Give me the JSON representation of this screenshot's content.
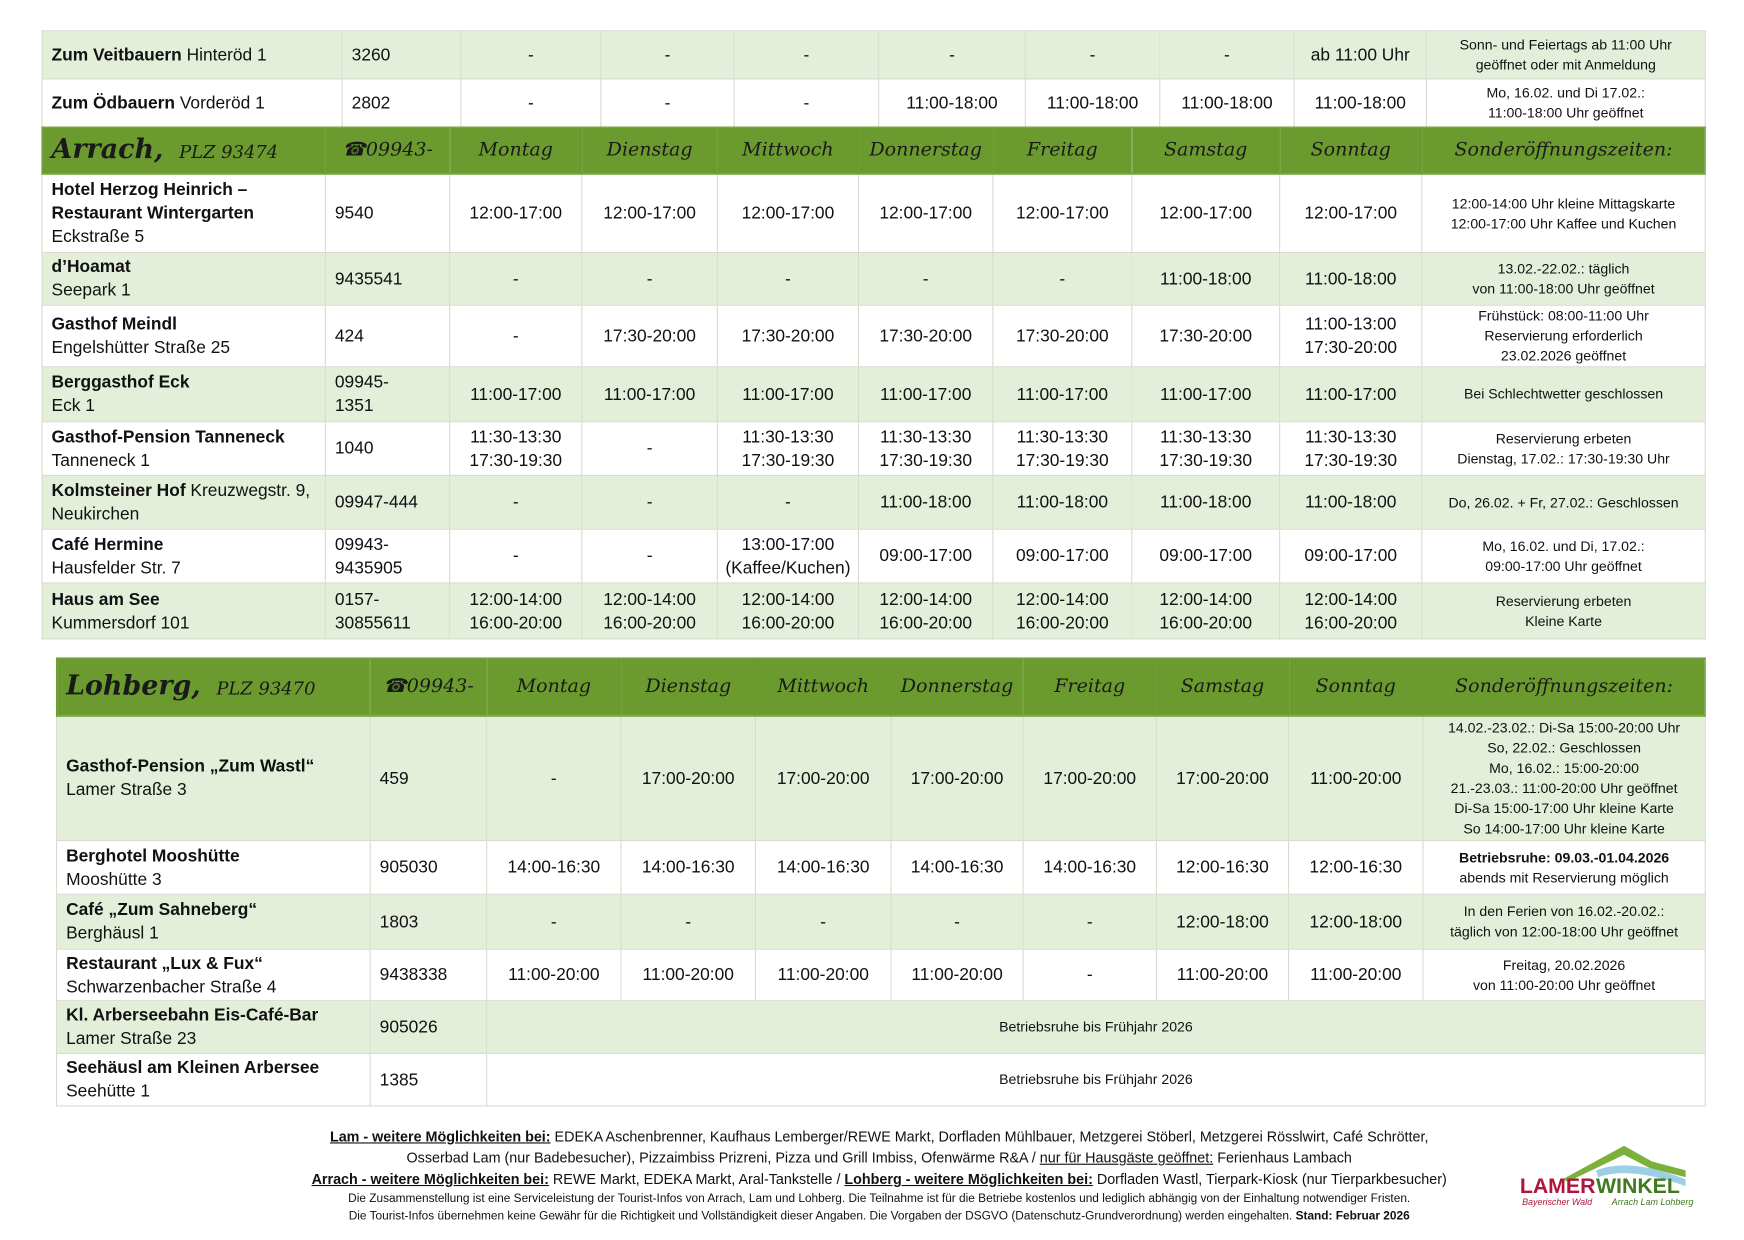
{
  "top_table": {
    "rows": [
      {
        "name": "Zum Veitbauern",
        "address": "Hinteröd 1",
        "phone": "3260",
        "days": [
          "-",
          "-",
          "-",
          "-",
          "-",
          "-",
          "ab 11:00 Uhr"
        ],
        "note": "Sonn- und Feiertags ab 11:00 Uhr\ngeöffnet oder mit Anmeldung"
      },
      {
        "name": "Zum Ödbauern",
        "address": "Vorderöd 1",
        "phone": "2802",
        "days": [
          "-",
          "-",
          "-",
          "11:00-18:00",
          "11:00-18:00",
          "11:00-18:00",
          "11:00-18:00"
        ],
        "note": "Mo, 16.02. und Di 17.02.:\n11:00-18:00 Uhr geöffnet"
      }
    ]
  },
  "arrach": {
    "header": {
      "place": "Arrach,",
      "plz": "PLZ 93474",
      "phone": "☎09943-",
      "days": [
        "Montag",
        "Dienstag",
        "Mittwoch",
        "Donnerstag",
        "Freitag",
        "Samstag",
        "Sonntag"
      ],
      "special": "Sonderöffnungszeiten:"
    },
    "rows": [
      {
        "name": "Hotel Herzog Heinrich –\nRestaurant Wintergarten",
        "address": "Eckstraße 5",
        "phone": "9540",
        "days": [
          "12:00-17:00",
          "12:00-17:00",
          "12:00-17:00",
          "12:00-17:00",
          "12:00-17:00",
          "12:00-17:00",
          "12:00-17:00"
        ],
        "note": "12:00-14:00 Uhr kleine Mittagskarte\n12:00-17:00 Uhr Kaffee und Kuchen"
      },
      {
        "name": "d’Hoamat",
        "address": "Seepark 1",
        "phone": "9435541",
        "days": [
          "-",
          "-",
          "-",
          "-",
          "-",
          "11:00-18:00",
          "11:00-18:00"
        ],
        "note": "13.02.-22.02.: täglich\nvon 11:00-18:00 Uhr geöffnet"
      },
      {
        "name": "Gasthof Meindl",
        "address": "Engelshütter Straße 25",
        "phone": "424",
        "days": [
          "-",
          "17:30-20:00",
          "17:30-20:00",
          "17:30-20:00",
          "17:30-20:00",
          "17:30-20:00",
          "11:00-13:00\n17:30-20:00"
        ],
        "note": "Frühstück: 08:00-11:00 Uhr\nReservierung erforderlich\n23.02.2026 geöffnet"
      },
      {
        "name": "Berggasthof Eck",
        "address": "Eck 1",
        "phone": "09945-\n1351",
        "days": [
          "11:00-17:00",
          "11:00-17:00",
          "11:00-17:00",
          "11:00-17:00",
          "11:00-17:00",
          "11:00-17:00",
          "11:00-17:00"
        ],
        "note": "Bei Schlechtwetter geschlossen"
      },
      {
        "name": "Gasthof-Pension Tanneneck",
        "address": "Tanneneck 1",
        "phone": "1040",
        "days": [
          "11:30-13:30\n17:30-19:30",
          "-",
          "11:30-13:30\n17:30-19:30",
          "11:30-13:30\n17:30-19:30",
          "11:30-13:30\n17:30-19:30",
          "11:30-13:30\n17:30-19:30",
          "11:30-13:30\n17:30-19:30"
        ],
        "note": "Reservierung erbeten\nDienstag, 17.02.: 17:30-19:30 Uhr"
      },
      {
        "name": "Kolmsteiner Hof",
        "address": "Kreuzwegstr. 9, Neukirchen",
        "phone": "09947-444",
        "days": [
          "-",
          "-",
          "-",
          "11:00-18:00",
          "11:00-18:00",
          "11:00-18:00",
          "11:00-18:00"
        ],
        "note": "Do, 26.02. + Fr, 27.02.: Geschlossen"
      },
      {
        "name": "Café Hermine",
        "address": "Hausfelder Str. 7",
        "phone": "09943-\n9435905",
        "days": [
          "-",
          "-",
          "13:00-17:00\n(Kaffee/Kuchen)",
          "09:00-17:00",
          "09:00-17:00",
          "09:00-17:00",
          "09:00-17:00"
        ],
        "note": "Mo, 16.02. und Di, 17.02.:\n09:00-17:00 Uhr geöffnet"
      },
      {
        "name": "Haus am See",
        "address": "Kummersdorf 101",
        "phone": "0157-\n30855611",
        "days": [
          "12:00-14:00\n16:00-20:00",
          "12:00-14:00\n16:00-20:00",
          "12:00-14:00\n16:00-20:00",
          "12:00-14:00\n16:00-20:00",
          "12:00-14:00\n16:00-20:00",
          "12:00-14:00\n16:00-20:00",
          "12:00-14:00\n16:00-20:00"
        ],
        "note": "Reservierung erbeten\nKleine Karte"
      }
    ]
  },
  "lohberg": {
    "header": {
      "place": "Lohberg,",
      "plz": "PLZ 93470",
      "phone": "☎09943-",
      "days": [
        "Montag",
        "Dienstag",
        "Mittwoch",
        "Donnerstag",
        "Freitag",
        "Samstag",
        "Sonntag"
      ],
      "special": "Sonderöffnungszeiten:"
    },
    "rows": [
      {
        "name": "Gasthof-Pension „Zum Wastl“",
        "address": "Lamer Straße 3",
        "phone": "459",
        "days": [
          "-",
          "17:00-20:00",
          "17:00-20:00",
          "17:00-20:00",
          "17:00-20:00",
          "17:00-20:00",
          "11:00-20:00"
        ],
        "note": "14.02.-23.02.: Di-Sa 15:00-20:00 Uhr\nSo, 22.02.: Geschlossen\nMo, 16.02.: 15:00-20:00\n21.-23.03.: 11:00-20:00 Uhr geöffnet\nDi-Sa 15:00-17:00 Uhr kleine Karte\nSo 14:00-17:00 Uhr kleine Karte"
      },
      {
        "name": "Berghotel Mooshütte",
        "address": "Mooshütte 3",
        "phone": "905030",
        "days": [
          "14:00-16:30",
          "14:00-16:30",
          "14:00-16:30",
          "14:00-16:30",
          "14:00-16:30",
          "12:00-16:30",
          "12:00-16:30"
        ],
        "note": "Betriebsruhe: 09.03.-01.04.2026\nabends mit Reservierung möglich"
      },
      {
        "name": "Café „Zum Sahneberg“",
        "address": "Berghäusl 1",
        "phone": "1803",
        "days": [
          "-",
          "-",
          "-",
          "-",
          "-",
          "12:00-18:00",
          "12:00-18:00"
        ],
        "note": "In den Ferien von 16.02.-20.02.:\ntäglich von 12:00-18:00 Uhr geöffnet"
      },
      {
        "name": "Restaurant „Lux & Fux“",
        "address": "Schwarzenbacher Straße 4",
        "phone": "9438338",
        "days": [
          "11:00-20:00",
          "11:00-20:00",
          "11:00-20:00",
          "11:00-20:00",
          "-",
          "11:00-20:00",
          "11:00-20:00"
        ],
        "note": "Freitag, 20.02.2026\nvon 11:00-20:00 Uhr geöffnet"
      },
      {
        "name": "Kl. Arberseebahn Eis-Café-Bar",
        "address": "Lamer Straße 23",
        "phone": "905026",
        "span": "Betriebsruhe bis Frühjahr 2026"
      },
      {
        "name": "Seehäusl am Kleinen Arbersee",
        "address": "Seehütte 1",
        "phone": "1385",
        "span": "Betriebsruhe bis Frühjahr 2026"
      }
    ]
  },
  "footer": {
    "lines": [
      [
        {
          "text": "Lam - weitere Möglichkeiten bei:",
          "style": "bold-underline"
        },
        {
          "text": " EDEKA Aschenbrenner, Kaufhaus Lemberger/REWE Markt, Dorfladen Mühlbauer, Metzgerei Stöberl, Metzgerei Rösslwirt, Café Schrötter,"
        }
      ],
      [
        {
          "text": "Osserbad Lam (nur Badebesucher), Pizzaimbiss Prizreni, Pizza und Grill Imbiss, Ofenwärme R&A / "
        },
        {
          "text": "nur für Hausgäste geöffnet:",
          "style": "underline"
        },
        {
          "text": " Ferienhaus Lambach"
        }
      ],
      [
        {
          "text": "Arrach - weitere Möglichkeiten bei:",
          "style": "bold-underline"
        },
        {
          "text": " REWE Markt, EDEKA Markt, Aral-Tankstelle / "
        },
        {
          "text": "Lohberg - weitere Möglichkeiten bei:",
          "style": "bold-underline"
        },
        {
          "text": " Dorfladen Wastl, Tierpark-Kiosk (nur Tierparkbesucher)"
        }
      ],
      [
        {
          "text": "Die Zusammenstellung ist eine Serviceleistung der Tourist-Infos von Arrach, Lam und Lohberg. Die Teilnahme ist für die Betriebe kostenlos und lediglich abhängig von der Einhaltung notwendiger Fristen."
        }
      ],
      [
        {
          "text": "Die Tourist-Infos übernehmen keine Gewähr für die Richtigkeit und Vollständigkeit dieser Angaben. Die Vorgaben der DSGVO (Datenschutz-Grundverordnung) werden eingehalten. "
        },
        {
          "text": "Stand: Februar 2026",
          "style": "bold"
        }
      ]
    ]
  },
  "logo": {
    "word1": "LAMER",
    "word2": "WINKEL",
    "region": "Bayerischer Wald",
    "places": "Arrach Lam Lohberg"
  }
}
